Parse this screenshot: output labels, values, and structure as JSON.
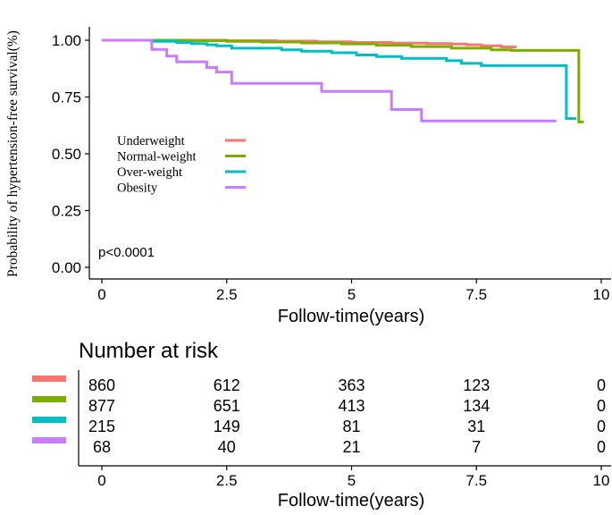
{
  "chart_data": [
    {
      "type": "line",
      "subtype": "step",
      "title": "",
      "xlabel": "Follow-time(years)",
      "ylabel": "Probability of hypertension-free survival(%)",
      "xlim": [
        -0.25,
        10
      ],
      "ylim": [
        0,
        1
      ],
      "x_ticks": [
        0,
        2.5,
        5,
        7.5,
        10
      ],
      "x_tick_labels": [
        "0",
        "2.5",
        "5",
        "7.5",
        "10"
      ],
      "y_ticks": [
        0,
        0.25,
        0.5,
        0.75,
        1
      ],
      "y_tick_labels": [
        "0.00",
        "0.25",
        "0.50",
        "0.75",
        "1.00"
      ],
      "grid": false,
      "legend_position": "center-left",
      "annotation": "p<0.0001",
      "series": [
        {
          "name": "Underweight",
          "color": "#F8766D",
          "points": [
            [
              0,
              1.0
            ],
            [
              1.5,
              1.0
            ],
            [
              2.5,
              0.998
            ],
            [
              3.5,
              0.996
            ],
            [
              4.3,
              0.993
            ],
            [
              5.0,
              0.99
            ],
            [
              5.8,
              0.987
            ],
            [
              6.5,
              0.985
            ],
            [
              7.0,
              0.983
            ],
            [
              7.3,
              0.98
            ],
            [
              7.6,
              0.975
            ],
            [
              8.0,
              0.97
            ],
            [
              8.3,
              0.97
            ]
          ]
        },
        {
          "name": "Normal-weight",
          "color": "#7CAE00",
          "points": [
            [
              0,
              1.0
            ],
            [
              1.0,
              1.0
            ],
            [
              1.8,
              0.998
            ],
            [
              2.5,
              0.995
            ],
            [
              3.2,
              0.992
            ],
            [
              4.0,
              0.988
            ],
            [
              4.8,
              0.984
            ],
            [
              5.5,
              0.978
            ],
            [
              6.2,
              0.972
            ],
            [
              7.0,
              0.965
            ],
            [
              7.8,
              0.958
            ],
            [
              8.2,
              0.955
            ],
            [
              9.55,
              0.955
            ],
            [
              9.55,
              0.64
            ],
            [
              9.65,
              0.64
            ]
          ]
        },
        {
          "name": "Over-weight",
          "color": "#00BFC4",
          "points": [
            [
              0,
              1.0
            ],
            [
              0.7,
              1.0
            ],
            [
              1.0,
              0.995
            ],
            [
              1.5,
              0.99
            ],
            [
              1.8,
              0.985
            ],
            [
              2.1,
              0.98
            ],
            [
              2.3,
              0.975
            ],
            [
              2.6,
              0.965
            ],
            [
              3.0,
              0.965
            ],
            [
              3.6,
              0.958
            ],
            [
              4.0,
              0.952
            ],
            [
              4.6,
              0.945
            ],
            [
              5.1,
              0.935
            ],
            [
              5.5,
              0.928
            ],
            [
              6.0,
              0.92
            ],
            [
              6.9,
              0.91
            ],
            [
              7.2,
              0.898
            ],
            [
              7.6,
              0.888
            ],
            [
              9.3,
              0.888
            ],
            [
              9.3,
              0.655
            ],
            [
              9.5,
              0.655
            ]
          ]
        },
        {
          "name": "Obesity",
          "color": "#C77CFF",
          "points": [
            [
              0,
              1.0
            ],
            [
              1.0,
              1.0
            ],
            [
              1.0,
              0.96
            ],
            [
              1.3,
              0.96
            ],
            [
              1.3,
              0.93
            ],
            [
              1.5,
              0.93
            ],
            [
              1.5,
              0.905
            ],
            [
              2.1,
              0.905
            ],
            [
              2.1,
              0.88
            ],
            [
              2.3,
              0.88
            ],
            [
              2.3,
              0.86
            ],
            [
              2.6,
              0.86
            ],
            [
              2.6,
              0.81
            ],
            [
              4.4,
              0.81
            ],
            [
              4.4,
              0.775
            ],
            [
              5.8,
              0.775
            ],
            [
              5.8,
              0.695
            ],
            [
              6.4,
              0.695
            ],
            [
              6.4,
              0.645
            ],
            [
              9.1,
              0.645
            ]
          ]
        }
      ]
    },
    {
      "type": "table",
      "title": "Number at risk",
      "xlabel": "Follow-time(years)",
      "x_ticks": [
        0,
        2.5,
        5,
        7.5,
        10
      ],
      "x_tick_labels": [
        "0",
        "2.5",
        "5",
        "7.5",
        "10"
      ],
      "rows": [
        {
          "name": "Underweight",
          "color": "#F8766D",
          "values": [
            "860",
            "612",
            "363",
            "123",
            "0"
          ]
        },
        {
          "name": "Normal-weight",
          "color": "#7CAE00",
          "values": [
            "877",
            "651",
            "413",
            "134",
            "0"
          ]
        },
        {
          "name": "Over-weight",
          "color": "#00BFC4",
          "values": [
            "215",
            "149",
            "81",
            "31",
            "0"
          ]
        },
        {
          "name": "Obesity",
          "color": "#C77CFF",
          "values": [
            "68",
            "40",
            "21",
            "7",
            "0"
          ]
        }
      ]
    }
  ]
}
